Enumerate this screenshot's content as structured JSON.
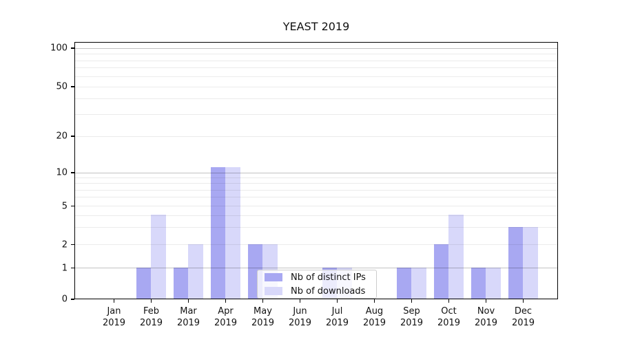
{
  "title": "YEAST 2019",
  "colors": {
    "distinct_ips_bar": "#a8a8f2",
    "downloads_bar": "#d8d8fa",
    "grid_major": "rgba(0,0,0,0.24)",
    "grid_minor": "rgba(0,0,0,0.08)",
    "axis": "#000000"
  },
  "legend": {
    "items": [
      {
        "label": "Nb of distinct IPs",
        "series_key": "distinct_ips"
      },
      {
        "label": "Nb of downloads",
        "series_key": "downloads"
      }
    ]
  },
  "chart_data": {
    "type": "bar",
    "title": "YEAST 2019",
    "xlabel": "",
    "ylabel": "",
    "year_label": "2019",
    "categories": [
      "Jan",
      "Feb",
      "Mar",
      "Apr",
      "May",
      "Jun",
      "Jul",
      "Aug",
      "Sep",
      "Oct",
      "Nov",
      "Dec"
    ],
    "series": [
      {
        "name": "Nb of distinct IPs",
        "color_key": "distinct_ips_bar",
        "values": [
          0,
          1,
          1,
          11,
          2,
          0,
          1,
          0,
          1,
          2,
          1,
          3
        ]
      },
      {
        "name": "Nb of downloads",
        "color_key": "downloads_bar",
        "values": [
          0,
          4,
          2,
          11,
          2,
          0,
          1,
          0,
          1,
          4,
          1,
          3
        ]
      }
    ],
    "yscale": "symlog-like",
    "ylim": [
      0,
      112
    ],
    "yticks": [
      0,
      1,
      2,
      5,
      10,
      20,
      50,
      100
    ],
    "major_gridlines": [
      1,
      10,
      100
    ],
    "minor_gridlines": [
      2,
      3,
      4,
      5,
      6,
      7,
      8,
      9,
      20,
      30,
      40,
      50,
      60,
      70,
      80,
      90
    ],
    "grid": true,
    "legend_position": "lower-center-right"
  }
}
